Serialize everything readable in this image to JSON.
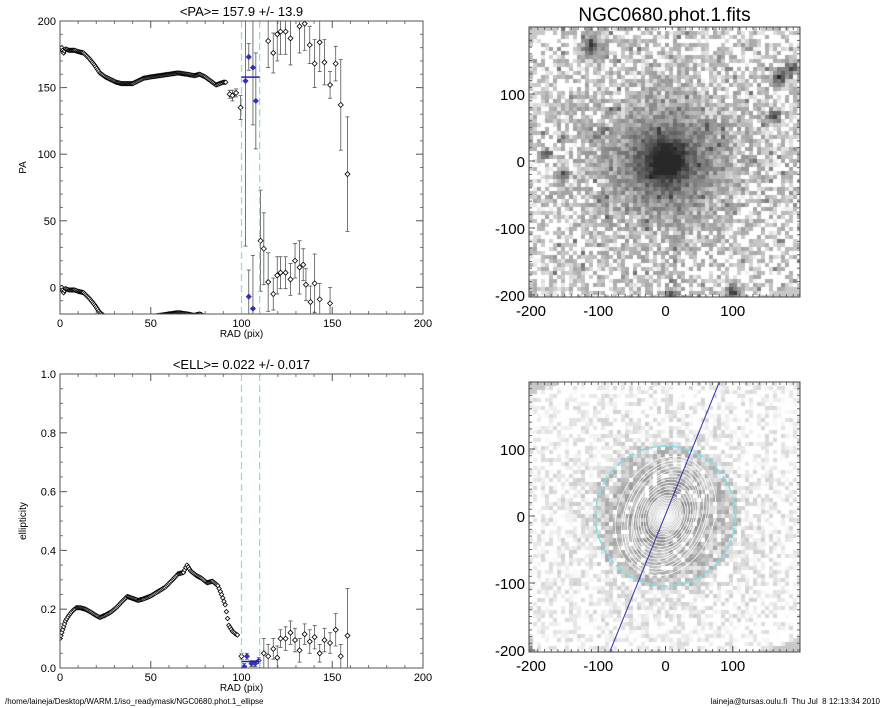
{
  "footer": {
    "path": "/home/laineja/Desktop/WARM.1/iso_readymask/NGC0680.phot.1_ellipse",
    "stamp": "laineja@tursas.oulu.fi  Thu Jul  8 12:13:34 2010"
  },
  "colors": {
    "mean_line": "#2020c0",
    "range_lines": "#7fe0e8",
    "points": "#000000",
    "selected_points": "#3030c0",
    "errorbars": "#555555",
    "contours": "#ffffff",
    "pa_line": "#3030b0"
  },
  "chart_data": [
    {
      "type": "scatter",
      "title": "<PA>= 157.9 +/-  13.9",
      "xlabel": "RAD (pix)",
      "ylabel": "PA",
      "xlim": [
        0,
        200
      ],
      "ylim": [
        -20,
        200
      ],
      "xticks": [
        "0",
        "50",
        "100",
        "150",
        "200"
      ],
      "yticks": [
        "0",
        "50",
        "100",
        "150",
        "200"
      ],
      "ytick_values": [
        0,
        50,
        100,
        150,
        200
      ],
      "mean": 157.9,
      "mean_err": 13.9,
      "range": [
        100,
        110
      ],
      "wrapped_copy_offset": -180,
      "curve": [
        [
          0,
          178
        ],
        [
          1,
          180
        ],
        [
          2,
          176
        ],
        [
          3,
          179
        ],
        [
          5,
          178
        ],
        [
          8,
          178
        ],
        [
          10,
          177
        ],
        [
          13,
          176
        ],
        [
          16,
          172
        ],
        [
          19,
          167
        ],
        [
          22,
          161
        ],
        [
          25,
          158
        ],
        [
          28,
          156
        ],
        [
          31,
          154
        ],
        [
          34,
          153
        ],
        [
          37,
          153
        ],
        [
          40,
          153
        ],
        [
          43,
          155
        ],
        [
          46,
          157
        ],
        [
          50,
          158
        ],
        [
          55,
          159
        ],
        [
          60,
          160
        ],
        [
          65,
          161
        ],
        [
          70,
          160
        ],
        [
          74,
          159
        ],
        [
          77,
          160
        ],
        [
          80,
          158
        ],
        [
          83,
          155
        ],
        [
          86,
          152
        ],
        [
          88,
          153
        ],
        [
          90,
          154
        ],
        [
          92,
          154
        ]
      ],
      "points": [
        [
          93.5,
          145,
          3
        ],
        [
          95,
          144,
          4
        ],
        [
          97,
          146,
          3
        ],
        [
          99.5,
          135,
          9
        ],
        [
          102.2,
          155,
          124
        ],
        [
          104,
          173,
          10
        ],
        [
          106.3,
          165,
          43
        ],
        [
          107.9,
          140,
          36
        ],
        [
          110.5,
          35,
          38
        ],
        [
          112.3,
          29,
          27
        ],
        [
          114.7,
          4,
          22
        ],
        [
          117.5,
          -5,
          12
        ],
        [
          119.7,
          9,
          14
        ],
        [
          121.5,
          11,
          12
        ],
        [
          124.3,
          11,
          12
        ],
        [
          127,
          6,
          12
        ],
        [
          129.5,
          20,
          13
        ],
        [
          132,
          15,
          20
        ],
        [
          134,
          17,
          12
        ],
        [
          135.5,
          2,
          12
        ],
        [
          138,
          -11,
          12
        ],
        [
          140.3,
          3,
          22
        ],
        [
          143.1,
          -9,
          12
        ],
        [
          148.8,
          -12,
          12
        ],
        [
          104,
          -7,
          20
        ],
        [
          106.3,
          -16,
          40
        ],
        [
          114.7,
          185,
          20
        ],
        [
          117.5,
          176,
          15
        ],
        [
          119.7,
          190,
          20
        ],
        [
          121.5,
          192,
          17
        ],
        [
          124.3,
          192,
          17
        ],
        [
          127,
          187,
          20
        ],
        [
          132,
          196,
          20
        ],
        [
          134.8,
          198,
          20
        ],
        [
          137.6,
          182,
          14
        ],
        [
          140.3,
          168,
          18
        ],
        [
          143.1,
          184,
          22
        ],
        [
          145.7,
          169,
          17
        ],
        [
          148.8,
          152,
          10
        ],
        [
          151.9,
          168,
          13
        ],
        [
          154.7,
          137,
          34
        ],
        [
          158.4,
          85,
          43
        ]
      ]
    },
    {
      "type": "scatter",
      "title": "<ELL>= 0.022 +/-  0.017",
      "xlabel": "RAD (pix)",
      "ylabel": "ellipticity",
      "xlim": [
        0,
        200
      ],
      "ylim": [
        0,
        1
      ],
      "xticks": [
        "0",
        "50",
        "100",
        "150",
        "200"
      ],
      "yticks": [
        "0.0",
        "0.2",
        "0.4",
        "0.6",
        "0.8",
        "1.0"
      ],
      "ytick_values": [
        0,
        0.2,
        0.4,
        0.6,
        0.8,
        1.0
      ],
      "mean": 0.022,
      "mean_err": 0.017,
      "range": [
        100,
        110
      ],
      "curve": [
        [
          0,
          0.1
        ],
        [
          1,
          0.12
        ],
        [
          2,
          0.14
        ],
        [
          3,
          0.16
        ],
        [
          5,
          0.18
        ],
        [
          7,
          0.195
        ],
        [
          9,
          0.205
        ],
        [
          11,
          0.205
        ],
        [
          14,
          0.2
        ],
        [
          17,
          0.19
        ],
        [
          20,
          0.178
        ],
        [
          22,
          0.172
        ],
        [
          25,
          0.18
        ],
        [
          28,
          0.19
        ],
        [
          31,
          0.205
        ],
        [
          34,
          0.225
        ],
        [
          37,
          0.243
        ],
        [
          40,
          0.237
        ],
        [
          43,
          0.23
        ],
        [
          46,
          0.235
        ],
        [
          50,
          0.245
        ],
        [
          54,
          0.26
        ],
        [
          58,
          0.275
        ],
        [
          62,
          0.3
        ],
        [
          65,
          0.32
        ],
        [
          68,
          0.325
        ],
        [
          70,
          0.35
        ],
        [
          72,
          0.33
        ],
        [
          75,
          0.315
        ],
        [
          78,
          0.305
        ],
        [
          81,
          0.29
        ],
        [
          84,
          0.295
        ],
        [
          87,
          0.28
        ],
        [
          89,
          0.25
        ],
        [
          91,
          0.215
        ],
        [
          93,
          0.145
        ],
        [
          95,
          0.125
        ],
        [
          97,
          0.115
        ],
        [
          98.5,
          0.11
        ]
      ],
      "points": [
        [
          100,
          0.04,
          0.01
        ],
        [
          101.5,
          0.005,
          0.01
        ],
        [
          103,
          0.04,
          0.01
        ],
        [
          105.5,
          0.015,
          0.01
        ],
        [
          107.5,
          0.015,
          0.01
        ],
        [
          109.5,
          0.025,
          0.01
        ],
        [
          112.3,
          0.05,
          0.05
        ],
        [
          114.7,
          0.04,
          0.04
        ],
        [
          117.5,
          0.065,
          0.035
        ],
        [
          119.7,
          0.035,
          0.04
        ],
        [
          121.5,
          0.1,
          0.03
        ],
        [
          124.3,
          0.1,
          0.04
        ],
        [
          127,
          0.12,
          0.04
        ],
        [
          129.5,
          0.095,
          0.04
        ],
        [
          132,
          0.06,
          0.04
        ],
        [
          134.8,
          0.115,
          0.035
        ],
        [
          137.6,
          0.09,
          0.04
        ],
        [
          140.3,
          0.105,
          0.04
        ],
        [
          143.1,
          0.05,
          0.03
        ],
        [
          145.7,
          0.095,
          0.04
        ],
        [
          148.8,
          0.085,
          0.035
        ],
        [
          151.9,
          0.13,
          0.055
        ],
        [
          154.7,
          0.04,
          0.04
        ],
        [
          158.4,
          0.11,
          0.16
        ]
      ]
    },
    {
      "type": "heatmap",
      "title": "NGC0680.phot.1.fits",
      "xlim": [
        -203,
        200
      ],
      "ylim": [
        -203,
        200
      ],
      "xticks": [
        "-200",
        "-100",
        "0",
        "100"
      ],
      "xtick_values": [
        -200,
        -100,
        0,
        100
      ],
      "yticks": [
        "-200",
        "-100",
        "0",
        "100"
      ],
      "ytick_values": [
        -200,
        -100,
        0,
        100
      ],
      "colormap": "inverted grayscale"
    },
    {
      "type": "heatmap",
      "title": "",
      "xlim": [
        -203,
        200
      ],
      "ylim": [
        -203,
        200
      ],
      "xticks": [
        "-200",
        "-100",
        "0",
        "100"
      ],
      "xtick_values": [
        -200,
        -100,
        0,
        100
      ],
      "yticks": [
        "-200",
        "-100",
        "0",
        "100"
      ],
      "ytick_values": [
        -200,
        -100,
        0,
        100
      ],
      "colormap": "inverted grayscale",
      "overlay": {
        "contours": "isophote ellipses",
        "range_circle_radius": [
          100,
          110
        ],
        "pa_line_deg": 157.9
      }
    }
  ]
}
